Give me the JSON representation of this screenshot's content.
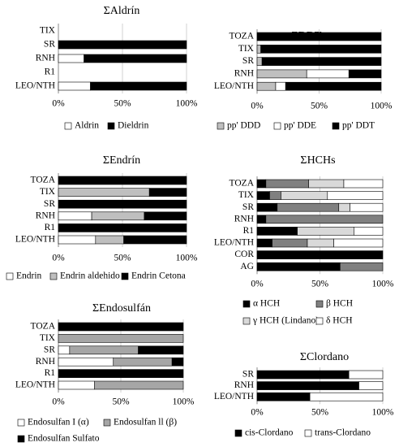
{
  "chart_data": [
    {
      "type": "bar",
      "title": "ΣAldrín",
      "categories": [
        "TIX",
        "SR",
        "RNH",
        "R1",
        "LEO/NTH"
      ],
      "series": [
        {
          "name": "Aldrin",
          "color": "#ffffff",
          "values": [
            0,
            0,
            20,
            0,
            25
          ]
        },
        {
          "name": "Dieldrin",
          "color": "#000000",
          "values": [
            0,
            100,
            80,
            0,
            75
          ]
        }
      ],
      "xlim": [
        0,
        100
      ],
      "xticks": [
        {
          "value": 0,
          "label": "0%"
        },
        {
          "value": 50,
          "label": "50%"
        },
        {
          "value": 100,
          "label": "100%"
        }
      ],
      "grid": true
    },
    {
      "type": "bar",
      "title": "ΣDDT",
      "categories": [
        "TOZA",
        "TIX",
        "SR",
        "RNH",
        "LEO/NTH"
      ],
      "series": [
        {
          "name": "pp' DDD",
          "color": "#bfbfbf",
          "values": [
            0,
            3,
            4,
            40,
            15
          ]
        },
        {
          "name": "pp' DDE",
          "color": "#ffffff",
          "values": [
            0,
            0,
            0,
            34,
            8
          ]
        },
        {
          "name": "pp' DDT",
          "color": "#000000",
          "values": [
            100,
            97,
            96,
            26,
            77
          ]
        }
      ],
      "xlim": [
        0,
        100
      ],
      "xticks": [
        {
          "value": 0,
          "label": "0%"
        },
        {
          "value": 50,
          "label": "50%"
        },
        {
          "value": 100,
          "label": "100%"
        }
      ],
      "grid": true
    },
    {
      "type": "bar",
      "title": "ΣEndrín",
      "categories": [
        "TOZA",
        "TIX",
        "SR",
        "RNH",
        "R1",
        "LEO/NTH"
      ],
      "series": [
        {
          "name": "Endrin",
          "color": "#ffffff",
          "values": [
            0,
            0,
            0,
            26,
            0,
            29
          ]
        },
        {
          "name": "Endrin aldehido",
          "color": "#bfbfbf",
          "values": [
            0,
            71,
            0,
            41,
            0,
            22
          ]
        },
        {
          "name": "Endrin Cetona",
          "color": "#000000",
          "values": [
            100,
            29,
            100,
            33,
            100,
            49
          ]
        }
      ],
      "xlim": [
        0,
        100
      ],
      "xticks": [
        {
          "value": 0,
          "label": "0%"
        },
        {
          "value": 50,
          "label": "50%"
        },
        {
          "value": 100,
          "label": "100%"
        }
      ],
      "grid": true
    },
    {
      "type": "bar",
      "title": "ΣHCHs",
      "categories": [
        "TOZA",
        "TIX",
        "SR",
        "RNH",
        "R1",
        "LEO/NTH",
        "COR",
        "AG"
      ],
      "series": [
        {
          "name": "α HCH",
          "color": "#000000",
          "values": [
            7,
            10,
            16,
            7,
            32,
            12,
            100,
            66
          ]
        },
        {
          "name": "β HCH",
          "color": "#808080",
          "values": [
            34,
            9,
            49,
            93,
            0,
            28,
            0,
            34
          ]
        },
        {
          "name": "γ HCH (Lindano)",
          "color": "#d9d9d9",
          "values": [
            28,
            37,
            9,
            0,
            45,
            21,
            0,
            0
          ]
        },
        {
          "name": "δ HCH",
          "color": "#ffffff",
          "values": [
            31,
            44,
            26,
            0,
            23,
            39,
            0,
            0
          ]
        }
      ],
      "xlim": [
        0,
        100
      ],
      "xticks": [
        {
          "value": 0,
          "label": "0%"
        },
        {
          "value": 50,
          "label": "50%"
        },
        {
          "value": 100,
          "label": "100%"
        }
      ],
      "grid": true
    },
    {
      "type": "bar",
      "title": "ΣEndosulfán",
      "categories": [
        "TOZA",
        "TIX",
        "SR",
        "RNH",
        "R1",
        "LEO/NTH"
      ],
      "series": [
        {
          "name": "Endosulfan I (α)",
          "color": "#ffffff",
          "values": [
            0,
            0,
            9,
            44,
            0,
            29
          ]
        },
        {
          "name": "Endosulfan ll (β)",
          "color": "#a6a6a6",
          "values": [
            0,
            100,
            55,
            47,
            0,
            71
          ]
        },
        {
          "name": "Endosulfan Sulfato",
          "color": "#000000",
          "values": [
            100,
            0,
            36,
            9,
            100,
            0
          ]
        }
      ],
      "xlim": [
        0,
        100
      ],
      "xticks": [
        {
          "value": 0,
          "label": "0%"
        },
        {
          "value": 50,
          "label": "50%"
        },
        {
          "value": 100,
          "label": "100%"
        }
      ],
      "grid": true
    },
    {
      "type": "bar",
      "title": "ΣClordano",
      "categories": [
        "SR",
        "RNH",
        "LEO/NTH"
      ],
      "series": [
        {
          "name": "cis-Clordano",
          "color": "#000000",
          "values": [
            73,
            81,
            42
          ]
        },
        {
          "name": "trans-Clordano",
          "color": "#ffffff",
          "values": [
            27,
            19,
            58
          ]
        }
      ],
      "xlim": [
        0,
        100
      ],
      "xticks": [
        {
          "value": 0,
          "label": "0%"
        },
        {
          "value": 50,
          "label": "50%"
        },
        {
          "value": 100,
          "label": "100%"
        }
      ],
      "grid": true
    }
  ]
}
